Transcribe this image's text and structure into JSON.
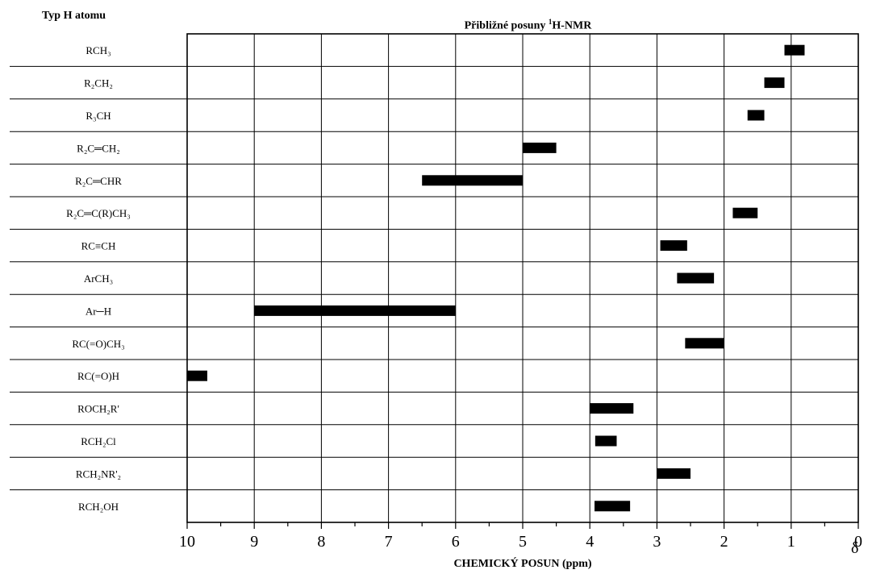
{
  "header": {
    "row_header": "Typ H atomu",
    "title_prefix": "Přibližné posuny ",
    "title_sup": "1",
    "title_suffix": "H-NMR",
    "delta_symbol": "δ"
  },
  "chart_data": {
    "type": "bar",
    "orientation": "horizontal-range",
    "title": "Přibližné posuny ¹H-NMR",
    "xlabel": "CHEMICKÝ POSUN (ppm)",
    "ylabel": "Typ H atomu",
    "xlim": [
      10,
      0
    ],
    "x_reversed": true,
    "x_ticks": [
      "10",
      "9",
      "8",
      "7",
      "6",
      "5",
      "4",
      "3",
      "2",
      "1",
      "0"
    ],
    "grid": "vertical lines at integer ppm, horizontal separators between rows",
    "colors": {
      "bar": "#000000",
      "grid": "#000000"
    },
    "categories": [
      {
        "label": "RCH₃",
        "range": [
          0.8,
          1.1
        ]
      },
      {
        "label": "R₂CH₂",
        "range": [
          1.1,
          1.4
        ]
      },
      {
        "label": "R₃CH",
        "range": [
          1.4,
          1.65
        ]
      },
      {
        "label": "R₂C═CH₂",
        "range": [
          4.5,
          5.0
        ]
      },
      {
        "label": "R₂C═CHR",
        "range": [
          5.0,
          6.5
        ]
      },
      {
        "label": "R₂C═C(R)CH₃",
        "range": [
          1.5,
          1.87
        ]
      },
      {
        "label": "RC≡CH",
        "range": [
          2.55,
          2.95
        ]
      },
      {
        "label": "ArCH₃",
        "range": [
          2.15,
          2.7
        ]
      },
      {
        "label": "Ar─H",
        "range": [
          6.0,
          9.0
        ]
      },
      {
        "label": "RC(=O)CH₃",
        "range": [
          2.0,
          2.58
        ]
      },
      {
        "label": "RC(=O)H",
        "range": [
          9.7,
          10.0
        ]
      },
      {
        "label": "ROCH₂R'",
        "range": [
          3.35,
          4.0
        ]
      },
      {
        "label": "RCH₂Cl",
        "range": [
          3.6,
          3.92
        ]
      },
      {
        "label": "RCH₂NR'₂",
        "range": [
          2.5,
          3.0
        ]
      },
      {
        "label": "RCH₂OH",
        "range": [
          3.4,
          3.93
        ]
      }
    ]
  }
}
